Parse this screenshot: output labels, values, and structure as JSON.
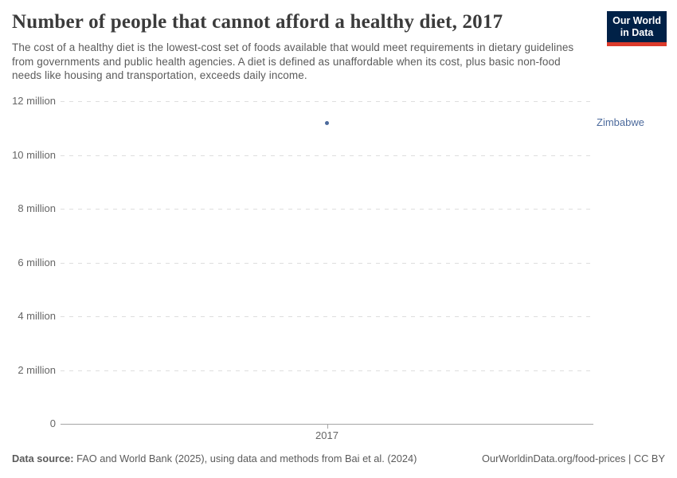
{
  "header": {
    "title": "Number of people that cannot afford a healthy diet, 2017",
    "subtitle": "The cost of a healthy diet is the lowest-cost set of foods available that would meet requirements in dietary guidelines from governments and public health agencies. A diet is defined as unaffordable when its cost, plus basic non-food needs like housing and transportation, exceeds daily income.",
    "logo": {
      "line1": "Our World",
      "line2": "in Data",
      "bg_color": "#002147",
      "accent_color": "#dc3a2b"
    }
  },
  "chart_data": {
    "type": "scatter",
    "title": "Number of people that cannot afford a healthy diet, 2017",
    "x": [
      2017
    ],
    "series": [
      {
        "name": "Zimbabwe",
        "values": [
          11200000
        ],
        "color": "#4c6a9c"
      }
    ],
    "xlabel": "",
    "ylabel": "",
    "xticks": [
      "2017"
    ],
    "yticks": [
      {
        "value": 0,
        "label": "0"
      },
      {
        "value": 2000000,
        "label": "2 million"
      },
      {
        "value": 4000000,
        "label": "4 million"
      },
      {
        "value": 6000000,
        "label": "6 million"
      },
      {
        "value": 8000000,
        "label": "8 million"
      },
      {
        "value": 10000000,
        "label": "10 million"
      },
      {
        "value": 12000000,
        "label": "12 million"
      }
    ],
    "ylim": [
      0,
      12000000
    ],
    "grid": "horizontal-dashed",
    "legend_position": "entity-label-right"
  },
  "footer": {
    "source_label": "Data source:",
    "source_text": " FAO and World Bank (2025), using data and methods from Bai et al. (2024)",
    "right_text": "OurWorldinData.org/food-prices | CC BY"
  }
}
